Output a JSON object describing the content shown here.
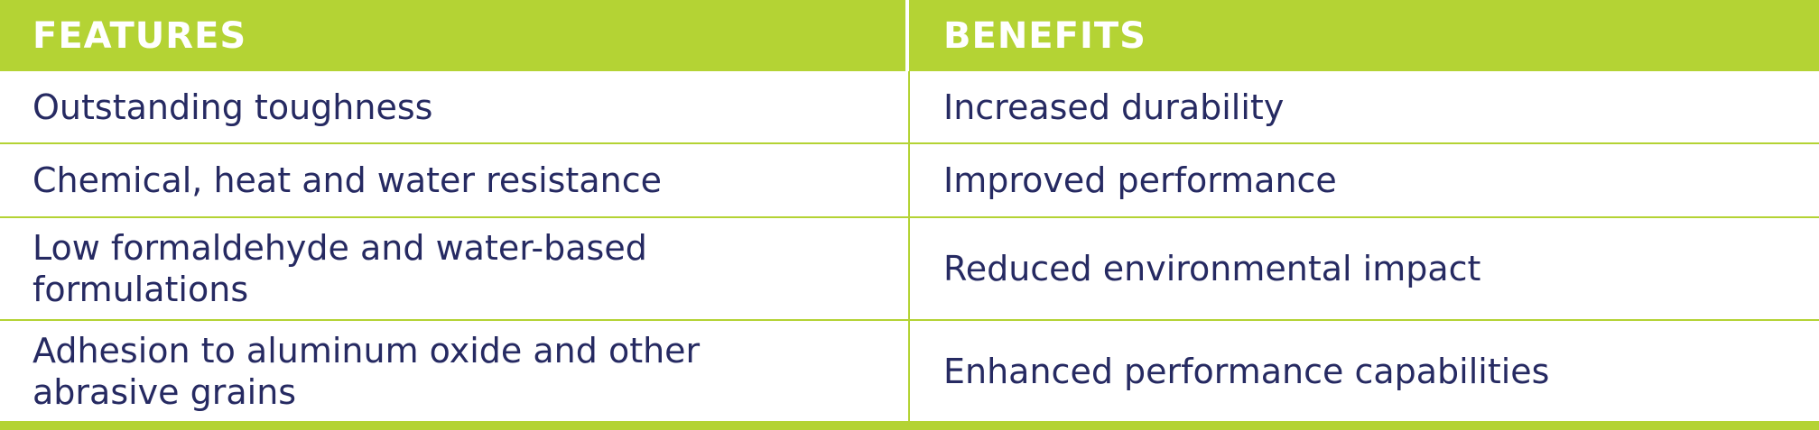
{
  "header": {
    "features": "FEATURES",
    "benefits": "BENEFITS"
  },
  "rows": [
    {
      "feature": "Outstanding toughness",
      "benefit": "Increased durability"
    },
    {
      "feature": "Chemical, heat and water resistance",
      "benefit": "Improved performance"
    },
    {
      "feature": "Low formaldehyde and water-based formulations",
      "benefit": "Reduced environmental impact"
    },
    {
      "feature": "Adhesion to aluminum oxide and other abrasive grains",
      "benefit": "Enhanced performance capabilities"
    }
  ],
  "colors": {
    "accent": "#b4d334",
    "text": "#262a62"
  }
}
